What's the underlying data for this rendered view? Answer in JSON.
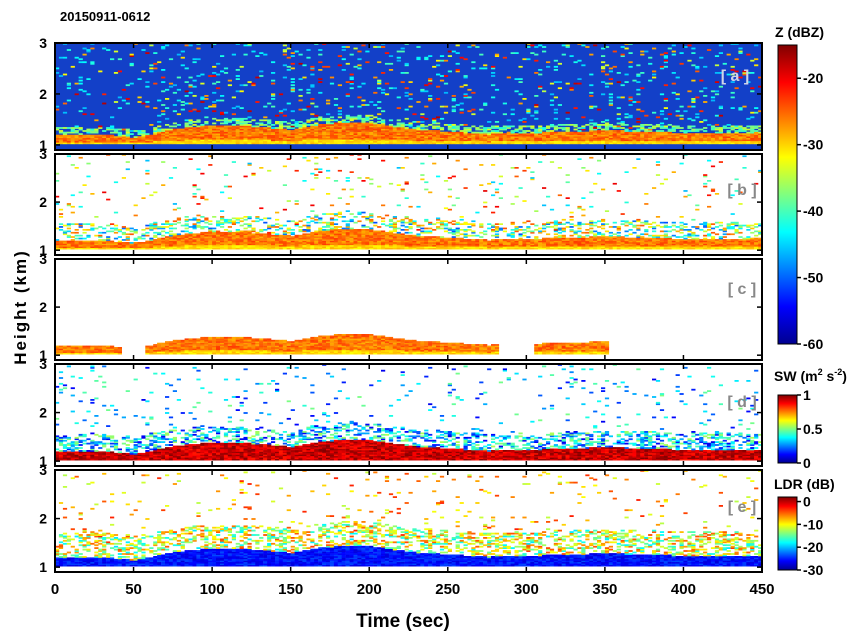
{
  "chart_data": {
    "type": "heatmap",
    "title": "20150911-0612",
    "xlabel": "Time (sec)",
    "ylabel": "Height (km)",
    "xlim": [
      0,
      450
    ],
    "ylim": [
      0.9,
      3.0
    ],
    "x_ticks": [
      "0",
      "50",
      "100",
      "150",
      "200",
      "250",
      "300",
      "350",
      "400",
      "450"
    ],
    "y_ticks": [
      "1",
      "2",
      "3"
    ],
    "panels": [
      {
        "label": "[ a ]",
        "field": "Z",
        "coverage": "full"
      },
      {
        "label": "[ b ]",
        "field": "Z",
        "coverage": "scattered"
      },
      {
        "label": "[ c ]",
        "field": "Z",
        "coverage": "low-layer"
      },
      {
        "label": "[ d ]",
        "field": "SW",
        "coverage": "scattered"
      },
      {
        "label": "[ e ]",
        "field": "LDR",
        "coverage": "scattered"
      }
    ],
    "colorbars": [
      {
        "name": "Z",
        "title": "Z (dBZ)",
        "range": [
          -60,
          -15
        ],
        "ticks": [
          "-20",
          "-30",
          "-40",
          "-50",
          "-60"
        ]
      },
      {
        "name": "SW",
        "title_main": "SW (m",
        "title_mid": " s",
        "title_end": ")",
        "sup1": "2",
        "sup2": "-2",
        "range": [
          0,
          1
        ],
        "ticks": [
          "1",
          "0.5",
          "0"
        ]
      },
      {
        "name": "LDR",
        "title": "LDR (dB)",
        "range": [
          -30,
          2
        ],
        "ticks": [
          "0",
          "-10",
          "-20",
          "-30"
        ]
      }
    ],
    "layers": {
      "cloud_base_km": 1.0,
      "cloud_top_profile": [
        [
          0,
          1.18
        ],
        [
          25,
          1.2
        ],
        [
          50,
          1.13
        ],
        [
          75,
          1.3
        ],
        [
          95,
          1.36
        ],
        [
          125,
          1.35
        ],
        [
          150,
          1.28
        ],
        [
          165,
          1.38
        ],
        [
          185,
          1.44
        ],
        [
          200,
          1.42
        ],
        [
          225,
          1.3
        ],
        [
          250,
          1.25
        ],
        [
          275,
          1.2
        ],
        [
          300,
          1.22
        ],
        [
          325,
          1.25
        ],
        [
          350,
          1.27
        ],
        [
          375,
          1.25
        ],
        [
          400,
          1.22
        ],
        [
          425,
          1.22
        ],
        [
          450,
          1.2
        ]
      ],
      "panel_c_segments": [
        [
          0,
          40
        ],
        [
          57,
          280
        ],
        [
          305,
          350
        ]
      ]
    }
  }
}
